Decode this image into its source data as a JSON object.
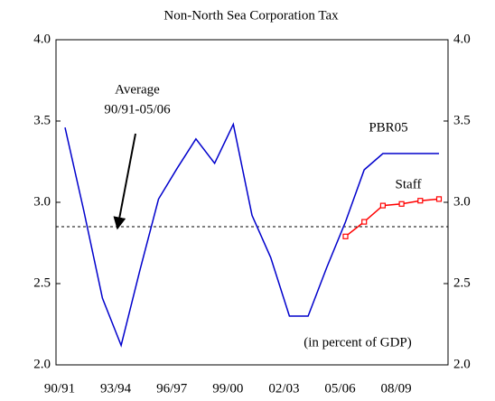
{
  "chart_data": {
    "type": "line",
    "title": "Non-North Sea Corporation Tax",
    "categories": [
      "90/91",
      null,
      null,
      "93/94",
      null,
      null,
      "96/97",
      null,
      null,
      "99/00",
      null,
      null,
      "02/03",
      null,
      null,
      "05/06",
      null,
      null,
      "08/09",
      null,
      null
    ],
    "series": [
      {
        "name": "PBR05",
        "color": "#0000cc",
        "values": [
          3.46,
          2.95,
          2.41,
          2.12,
          2.58,
          3.02,
          3.21,
          3.39,
          3.24,
          3.48,
          2.92,
          2.66,
          2.3,
          2.3,
          2.6,
          2.88,
          3.2,
          3.3,
          3.3,
          3.3,
          3.3
        ]
      },
      {
        "name": "Staff",
        "color": "#ff0000",
        "marker": "square",
        "values": [
          null,
          null,
          null,
          null,
          null,
          null,
          null,
          null,
          null,
          null,
          null,
          null,
          null,
          null,
          null,
          2.79,
          2.88,
          2.98,
          2.99,
          3.01,
          3.02
        ]
      }
    ],
    "average": 2.85,
    "average_label": [
      "Average",
      "90/91-05/06"
    ],
    "unit_note": "(in percent of GDP)",
    "ylim": [
      2,
      4
    ],
    "yticks": [
      {
        "value": 2,
        "label": "2.0"
      },
      {
        "value": 2.5,
        "label": "2.5"
      },
      {
        "value": 3,
        "label": "3.0"
      },
      {
        "value": 3.5,
        "label": "3.5"
      },
      {
        "value": 4,
        "label": "4.0"
      }
    ],
    "y2lim": [
      2,
      4
    ],
    "y2ticks": [
      {
        "value": 2,
        "label": "2.0"
      },
      {
        "value": 2.5,
        "label": "2.5"
      },
      {
        "value": 3,
        "label": "3.0"
      },
      {
        "value": 3.5,
        "label": "3.5"
      },
      {
        "value": 4,
        "label": "4.0"
      }
    ],
    "grid": false
  }
}
